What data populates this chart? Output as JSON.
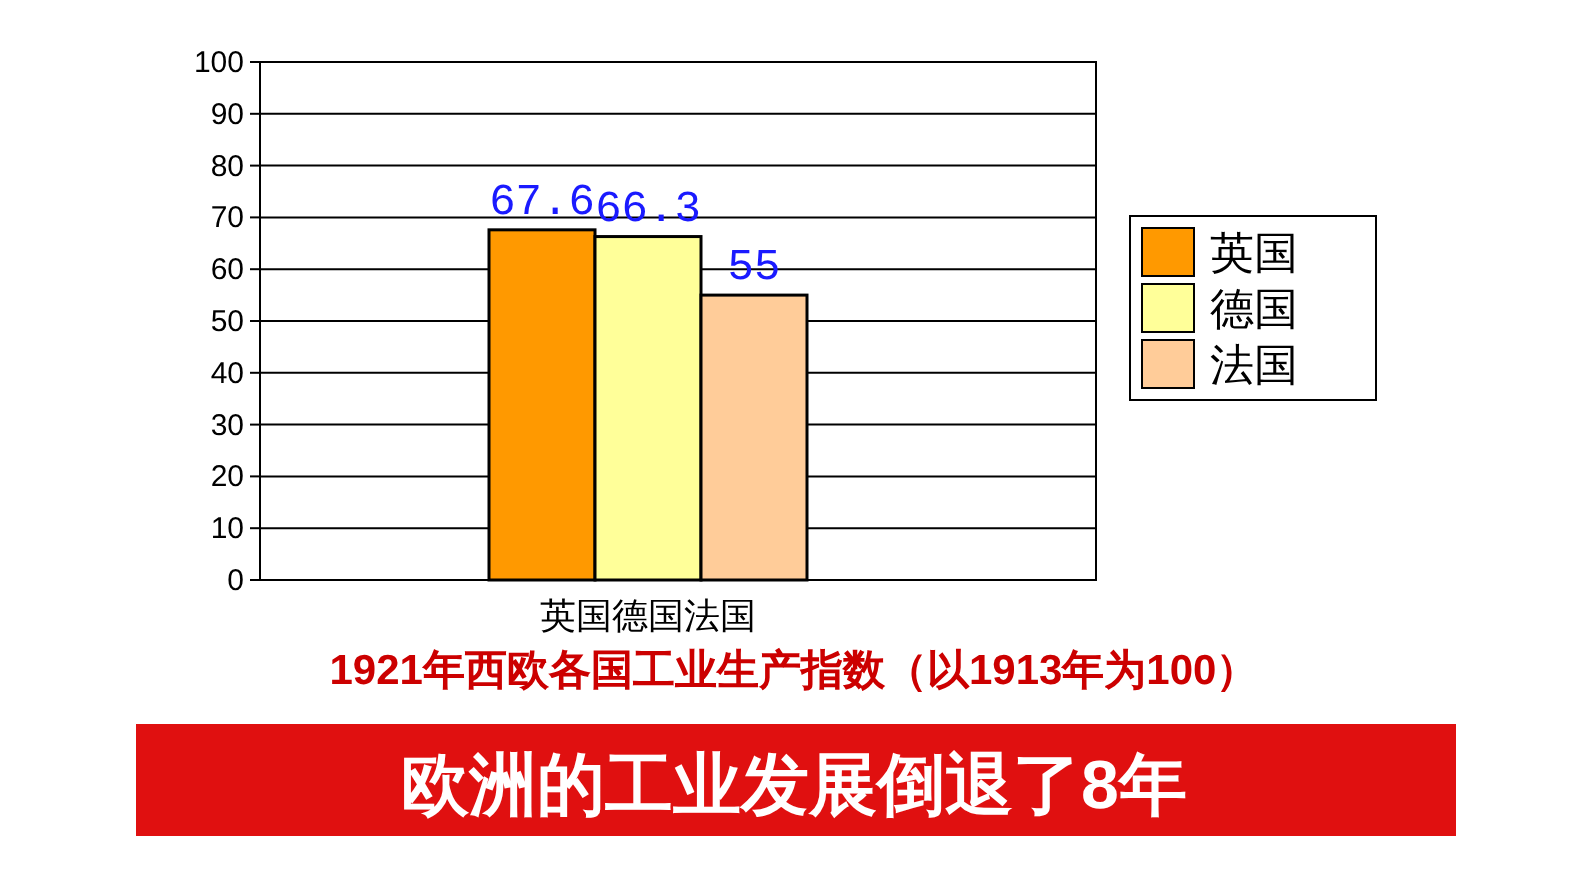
{
  "chart_data": {
    "type": "bar",
    "categories": [
      "英国德国法国"
    ],
    "series": [
      {
        "name": "英国",
        "color": "#ff9900",
        "values": [
          67.6
        ]
      },
      {
        "name": "德国",
        "color": "#ffff99",
        "values": [
          66.3
        ]
      },
      {
        "name": "法国",
        "color": "#ffcc99",
        "values": [
          55
        ]
      }
    ],
    "ylim": [
      0,
      100
    ],
    "yticks": [
      0,
      10,
      20,
      30,
      40,
      50,
      60,
      70,
      80,
      90,
      100
    ],
    "grid": "y",
    "legend": "right",
    "data_labels": true,
    "title": "1921年西欧各国工业生产指数（以1913年为100）",
    "annotations": [
      "欧洲的工业发展倒退了8年"
    ]
  }
}
